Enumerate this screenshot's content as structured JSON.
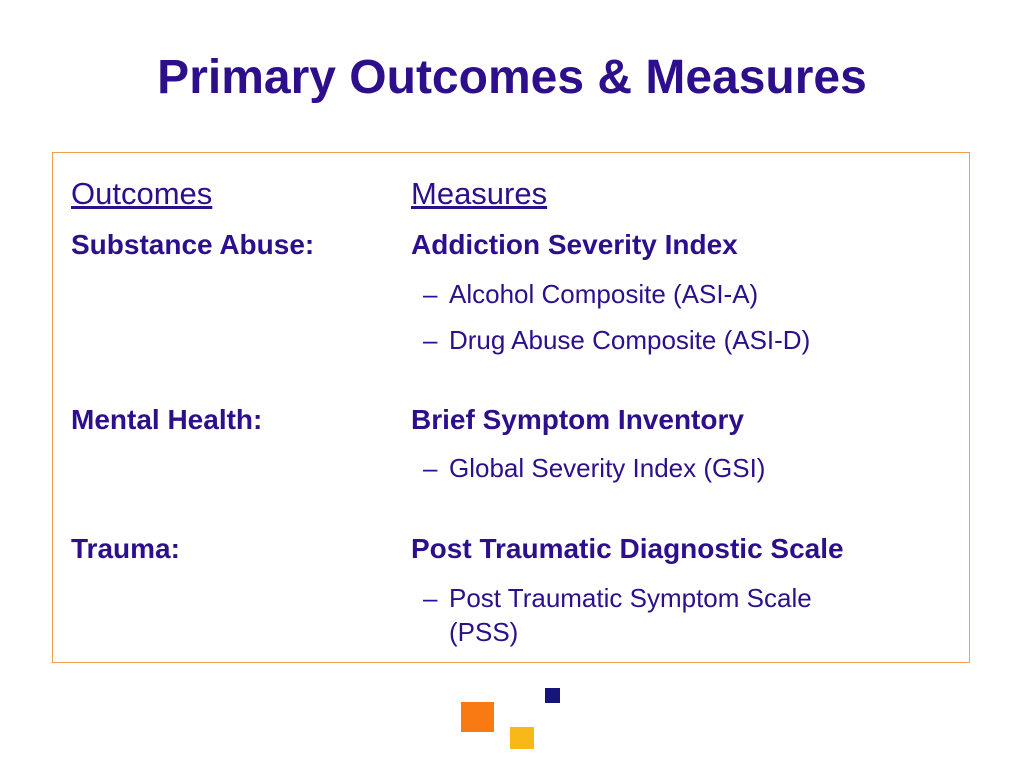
{
  "title": "Primary Outcomes & Measures",
  "headers": {
    "outcomes": "Outcomes",
    "measures": "Measures"
  },
  "rows": [
    {
      "outcome": "Substance Abuse:",
      "measure": "Addiction Severity Index",
      "subitems": [
        "Alcohol Composite (ASI-A)",
        "Drug Abuse Composite (ASI-D)"
      ]
    },
    {
      "outcome": "Mental Health:",
      "measure": "Brief Symptom Inventory",
      "subitems": [
        "Global Severity Index (GSI)"
      ]
    },
    {
      "outcome": "Trauma:",
      "measure": "Post Traumatic Diagnostic Scale",
      "subitems": [
        "Post Traumatic Symptom Scale",
        "(PSS)"
      ]
    }
  ],
  "dash": "–",
  "colors": {
    "text": "#2d0f8c",
    "box_border": "#f0a050",
    "square_orange": "#f97a12",
    "square_yellow": "#f8b81a",
    "square_navy": "#15157a"
  }
}
